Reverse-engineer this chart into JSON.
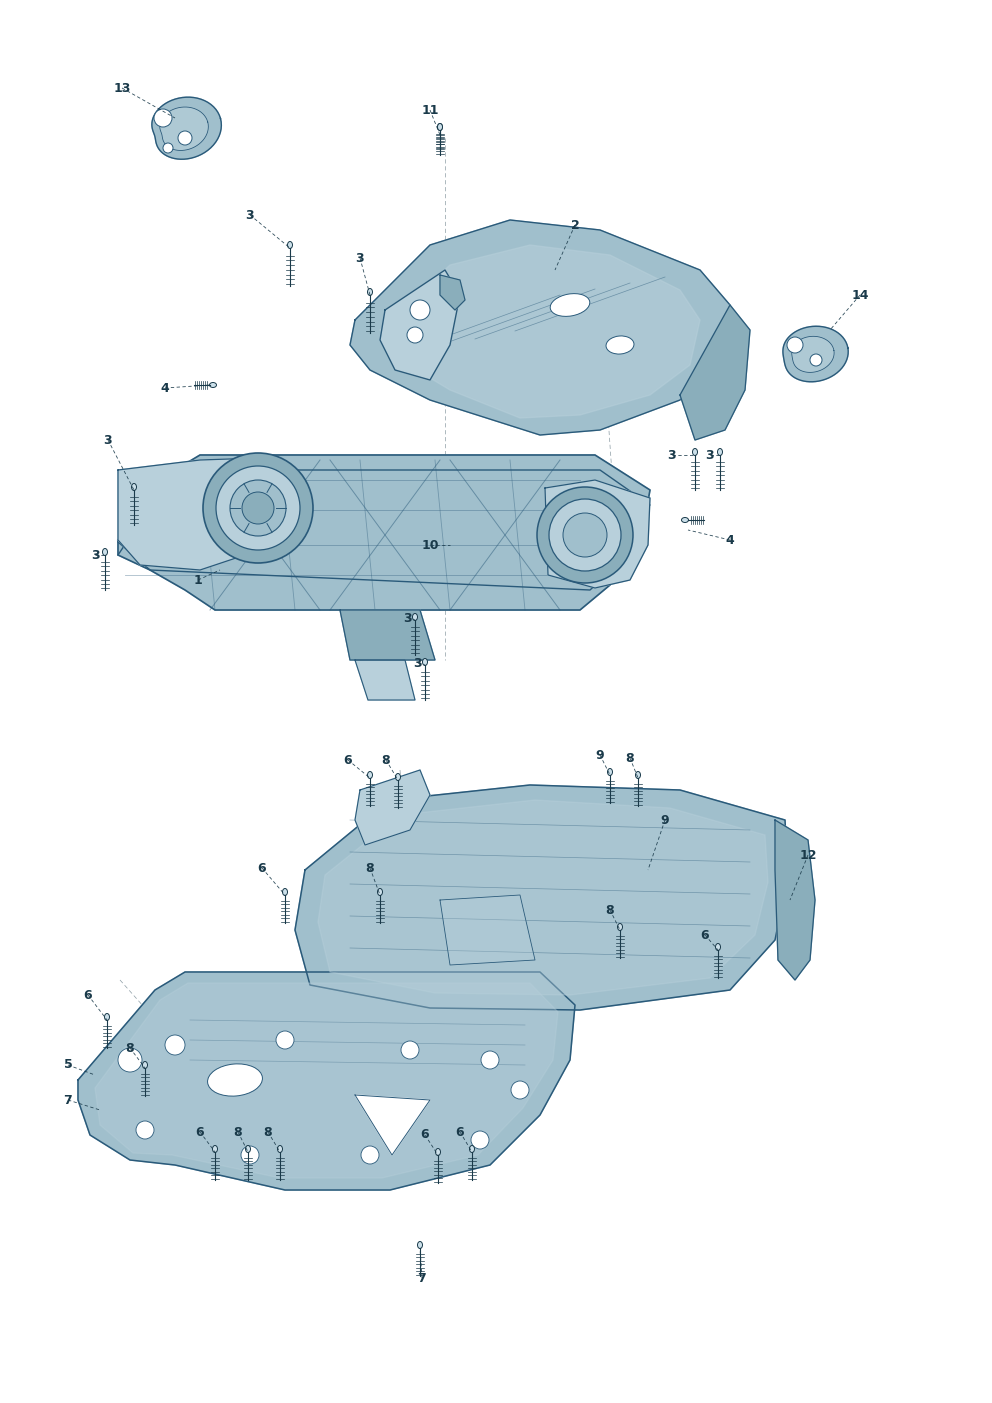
{
  "bg": "#ffffff",
  "lc": "#1a3a4a",
  "fc1": "#a0bfcc",
  "fc2": "#b8d0db",
  "fc3": "#8aaebb",
  "ec": "#2a5a7a",
  "fig_w": 9.92,
  "fig_h": 14.03,
  "dpi": 100
}
